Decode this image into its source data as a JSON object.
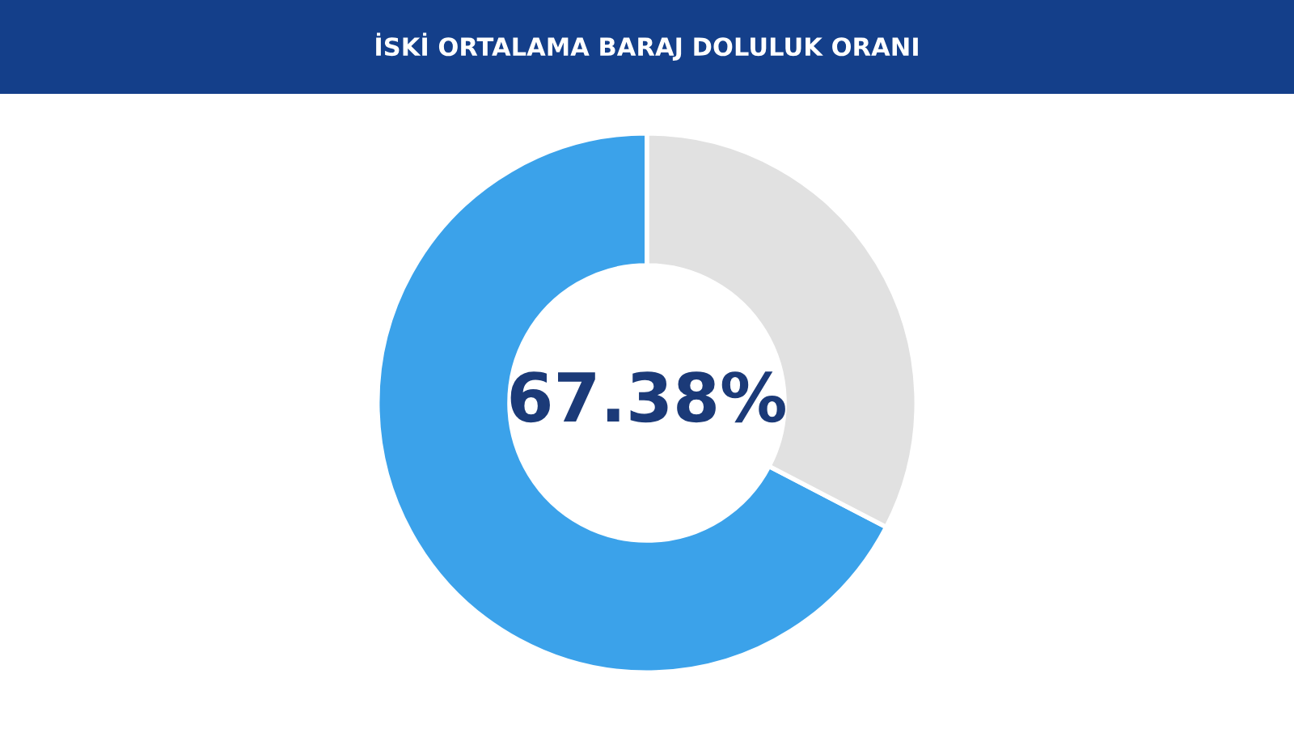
{
  "chart_data": {
    "type": "donut",
    "title": "İSKİ ORTALAMA BARAJ DOLULUK ORANI",
    "categories": [
      null,
      null
    ],
    "values": [
      67.38,
      32.62
    ],
    "colors": [
      "#3ba2ea",
      "#e1e1e1"
    ],
    "value_labels": [
      "67.38%",
      null
    ]
  }
}
